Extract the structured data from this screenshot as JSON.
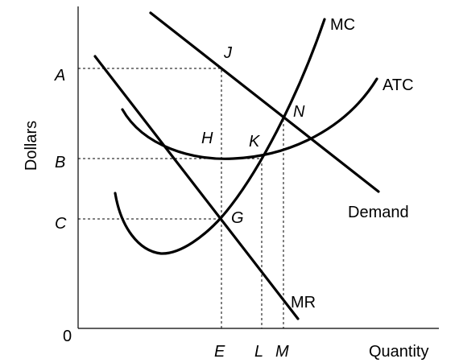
{
  "axes": {
    "y_title": "Dollars",
    "x_title": "Quantity",
    "origin_label": "0"
  },
  "y_ticks": {
    "a": "A",
    "b": "B",
    "c": "C"
  },
  "x_ticks": {
    "e": "E",
    "l": "L",
    "m": "M"
  },
  "curves": {
    "mc": "MC",
    "atc": "ATC",
    "demand": "Demand",
    "mr": "MR"
  },
  "points": {
    "j": "J",
    "n": "N",
    "h": "H",
    "k": "K",
    "g": "G"
  }
}
